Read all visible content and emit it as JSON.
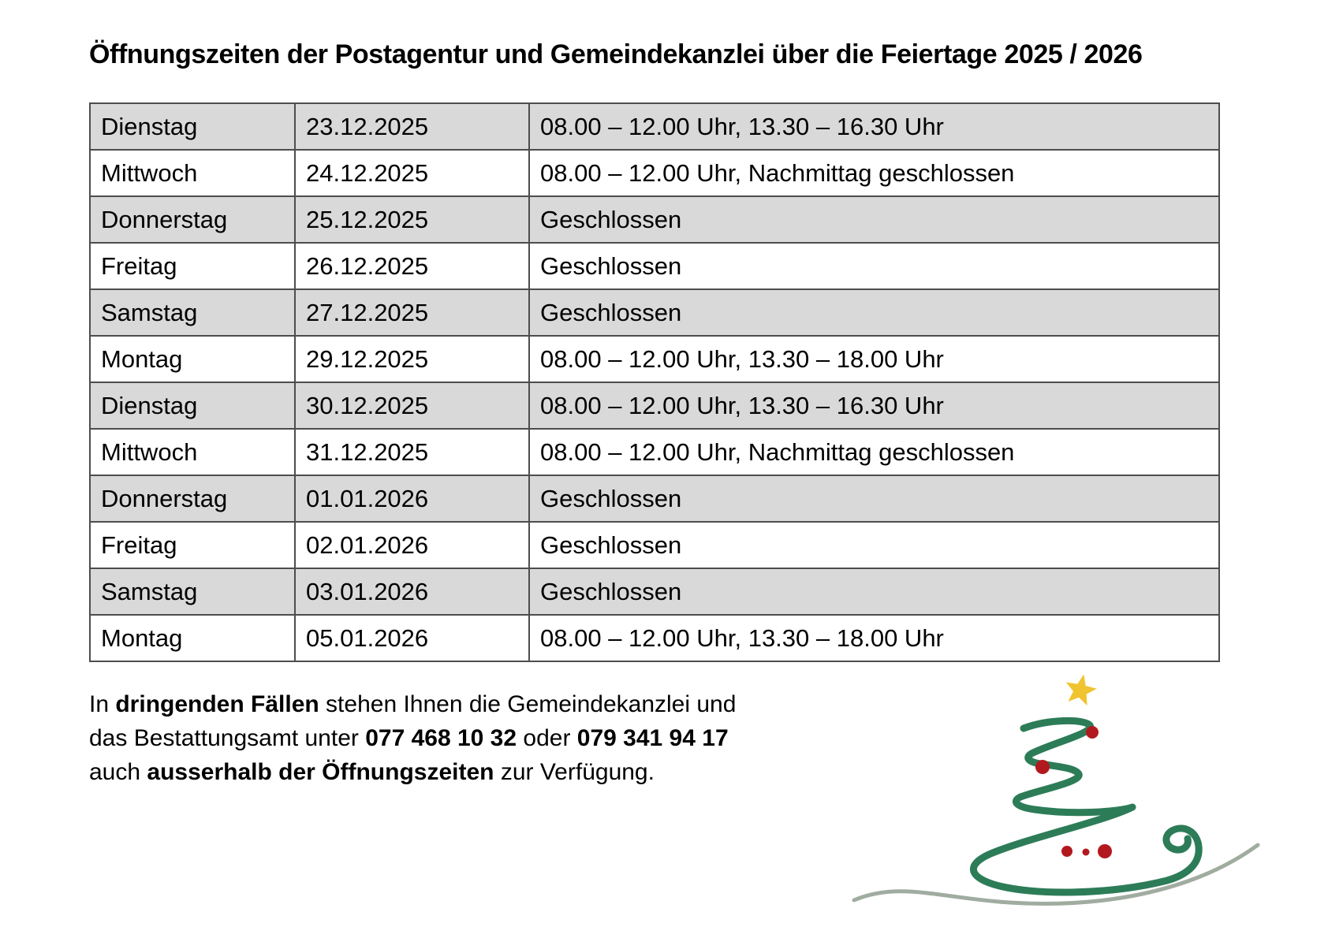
{
  "title": "Öffnungszeiten der Postagentur und Gemeindekanzlei über die Feiertage 2025 / 2026",
  "table": {
    "columns": [
      "day",
      "date",
      "hours"
    ],
    "rows": [
      {
        "day": "Dienstag",
        "date": "23.12.2025",
        "hours": "08.00 – 12.00 Uhr, 13.30 – 16.30 Uhr"
      },
      {
        "day": "Mittwoch",
        "date": "24.12.2025",
        "hours": "08.00 – 12.00 Uhr, Nachmittag geschlossen"
      },
      {
        "day": "Donnerstag",
        "date": "25.12.2025",
        "hours": "Geschlossen"
      },
      {
        "day": "Freitag",
        "date": "26.12.2025",
        "hours": "Geschlossen"
      },
      {
        "day": "Samstag",
        "date": "27.12.2025",
        "hours": "Geschlossen"
      },
      {
        "day": "Montag",
        "date": "29.12.2025",
        "hours": "08.00 – 12.00 Uhr, 13.30 – 18.00 Uhr"
      },
      {
        "day": "Dienstag",
        "date": "30.12.2025",
        "hours": "08.00 – 12.00 Uhr, 13.30 – 16.30 Uhr"
      },
      {
        "day": "Mittwoch",
        "date": "31.12.2025",
        "hours": "08.00 – 12.00 Uhr, Nachmittag geschlossen"
      },
      {
        "day": "Donnerstag",
        "date": "01.01.2026",
        "hours": "Geschlossen"
      },
      {
        "day": "Freitag",
        "date": "02.01.2026",
        "hours": "Geschlossen"
      },
      {
        "day": "Samstag",
        "date": "03.01.2026",
        "hours": "Geschlossen"
      },
      {
        "day": "Montag",
        "date": "05.01.2026",
        "hours": "08.00 – 12.00 Uhr, 13.30 – 18.00 Uhr"
      }
    ],
    "row_shading": {
      "odd": "#d9d9d9",
      "even": "#ffffff"
    },
    "border_color": "#4d4d4d"
  },
  "note": {
    "lines": [
      [
        {
          "text": "In ",
          "bold": false
        },
        {
          "text": "dringenden Fällen",
          "bold": true
        },
        {
          "text": " stehen Ihnen die Gemeindekanzlei und",
          "bold": false
        }
      ],
      [
        {
          "text": "das Bestattungsamt unter ",
          "bold": false
        },
        {
          "text": "077 468 10 32",
          "bold": true
        },
        {
          "text": " oder ",
          "bold": false
        },
        {
          "text": "079 341 94 17",
          "bold": true
        }
      ],
      [
        {
          "text": "auch ",
          "bold": false
        },
        {
          "text": "ausserhalb der Öffnungszeiten",
          "bold": true
        },
        {
          "text": " zur Verfügung.",
          "bold": false
        }
      ]
    ]
  },
  "graphic": {
    "name": "christmas-tree",
    "colors": {
      "ribbon": "#2d7c58",
      "star": "#f0c430",
      "baubles": "#b2191e",
      "swoosh": "#a0aca0"
    }
  }
}
